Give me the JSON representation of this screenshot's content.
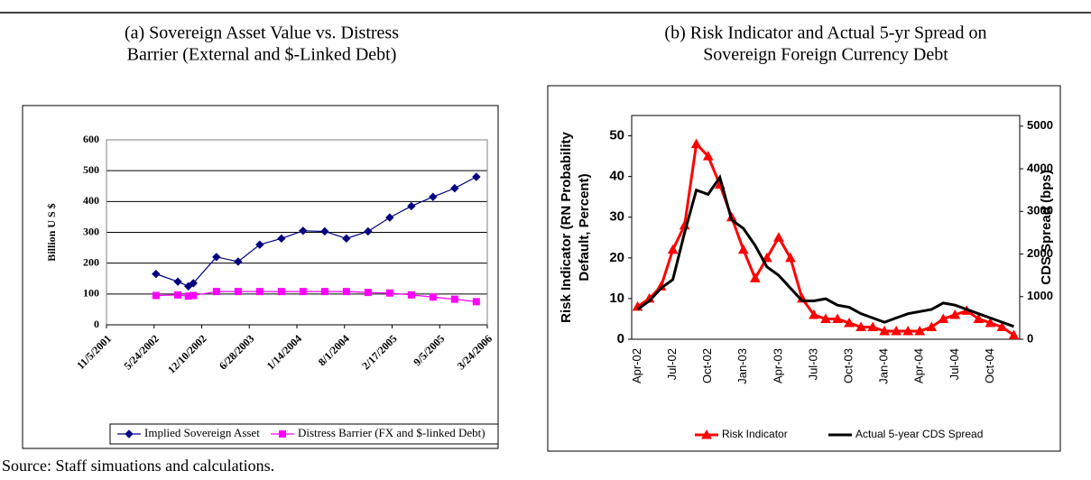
{
  "chart_data": [
    {
      "type": "line",
      "title": [
        "(a) Sovereign Asset Value vs. Distress",
        "Barrier (External and $-Linked Debt)"
      ],
      "ylabel": "Billion U S $",
      "x": [
        "2002-06-01",
        "2002-09-01",
        "2002-10-15",
        "2002-11-05",
        "2003-02-10",
        "2003-05-12",
        "2003-08-11",
        "2003-11-10",
        "2004-02-09",
        "2004-05-10",
        "2004-08-09",
        "2004-11-08",
        "2005-02-07",
        "2005-05-09",
        "2005-08-08",
        "2005-11-07",
        "2006-02-06"
      ],
      "xlim": [
        "2001-11-05",
        "2006-03-24"
      ],
      "xticks": [
        {
          "value": "2001-11-05",
          "label": "11/5/2001"
        },
        {
          "value": "2002-05-24",
          "label": "5/24/2002"
        },
        {
          "value": "2002-12-10",
          "label": "12/10/2002"
        },
        {
          "value": "2003-06-28",
          "label": "6/28/2003"
        },
        {
          "value": "2004-01-14",
          "label": "1/14/2004"
        },
        {
          "value": "2004-08-01",
          "label": "8/1/2004"
        },
        {
          "value": "2005-02-17",
          "label": "2/17/2005"
        },
        {
          "value": "2005-09-05",
          "label": "9/5/2005"
        },
        {
          "value": "2006-03-24",
          "label": "3/24/2006"
        }
      ],
      "ylim": [
        0,
        600
      ],
      "yticks": [
        0,
        100,
        200,
        300,
        400,
        500,
        600
      ],
      "grid": true,
      "series": [
        {
          "name": "Implied Sovereign Asset",
          "color": "#000080",
          "marker": "diamond",
          "values": [
            165,
            140,
            125,
            135,
            220,
            205,
            260,
            280,
            305,
            303,
            280,
            303,
            348,
            385,
            415,
            443,
            480
          ]
        },
        {
          "name": "Distress Barrier (FX and $-linked Debt)",
          "color": "#ff00ff",
          "marker": "square",
          "values": [
            95,
            97,
            93,
            95,
            108,
            108,
            108,
            108,
            108,
            108,
            108,
            105,
            103,
            97,
            90,
            83,
            75
          ]
        }
      ]
    },
    {
      "type": "line",
      "title": [
        "(b) Risk Indicator and Actual 5-yr Spread on",
        "Sovereign Foreign Currency Debt"
      ],
      "ylabel": [
        "Risk Indicator (RN  Probability",
        "Default, Percent)"
      ],
      "y2label": "CDS Spread (bps)",
      "categories": [
        "Apr-02",
        null,
        null,
        "Jul-02",
        null,
        null,
        "Oct-02",
        null,
        null,
        "Jan-03",
        null,
        null,
        "Apr-03",
        null,
        null,
        "Jul-03",
        null,
        null,
        "Oct-03",
        null,
        null,
        "Jan-04",
        null,
        null,
        "Apr-04",
        null,
        null,
        "Jul-04",
        null,
        null,
        "Oct-04",
        null,
        null
      ],
      "ylim": [
        0,
        55
      ],
      "yticks": [
        0,
        10,
        20,
        30,
        40,
        50
      ],
      "y2lim": [
        0,
        5250
      ],
      "y2ticks": [
        0,
        1000,
        2000,
        3000,
        4000,
        5000
      ],
      "series": [
        {
          "name": "Risk Indicator",
          "color": "#ff0000",
          "marker": "triangle",
          "values": [
            8,
            10,
            13,
            22,
            28,
            48,
            45,
            38,
            30,
            22,
            15,
            20,
            25,
            20,
            10,
            6,
            5,
            5,
            4,
            3,
            3,
            2,
            2,
            2,
            2,
            3,
            5,
            6,
            7,
            5,
            4,
            3,
            1
          ]
        },
        {
          "name": "Actual 5-year CDS Spread",
          "color": "#000000",
          "axis": "y2",
          "values": [
            700,
            900,
            1200,
            1400,
            2500,
            3500,
            3400,
            3800,
            2800,
            2600,
            2200,
            1700,
            1500,
            1200,
            900,
            900,
            950,
            800,
            750,
            600,
            500,
            400,
            500,
            600,
            650,
            700,
            850,
            800,
            700,
            600,
            500,
            400,
            300
          ]
        }
      ]
    }
  ],
  "source": "Source: Staff simuations and calculations."
}
